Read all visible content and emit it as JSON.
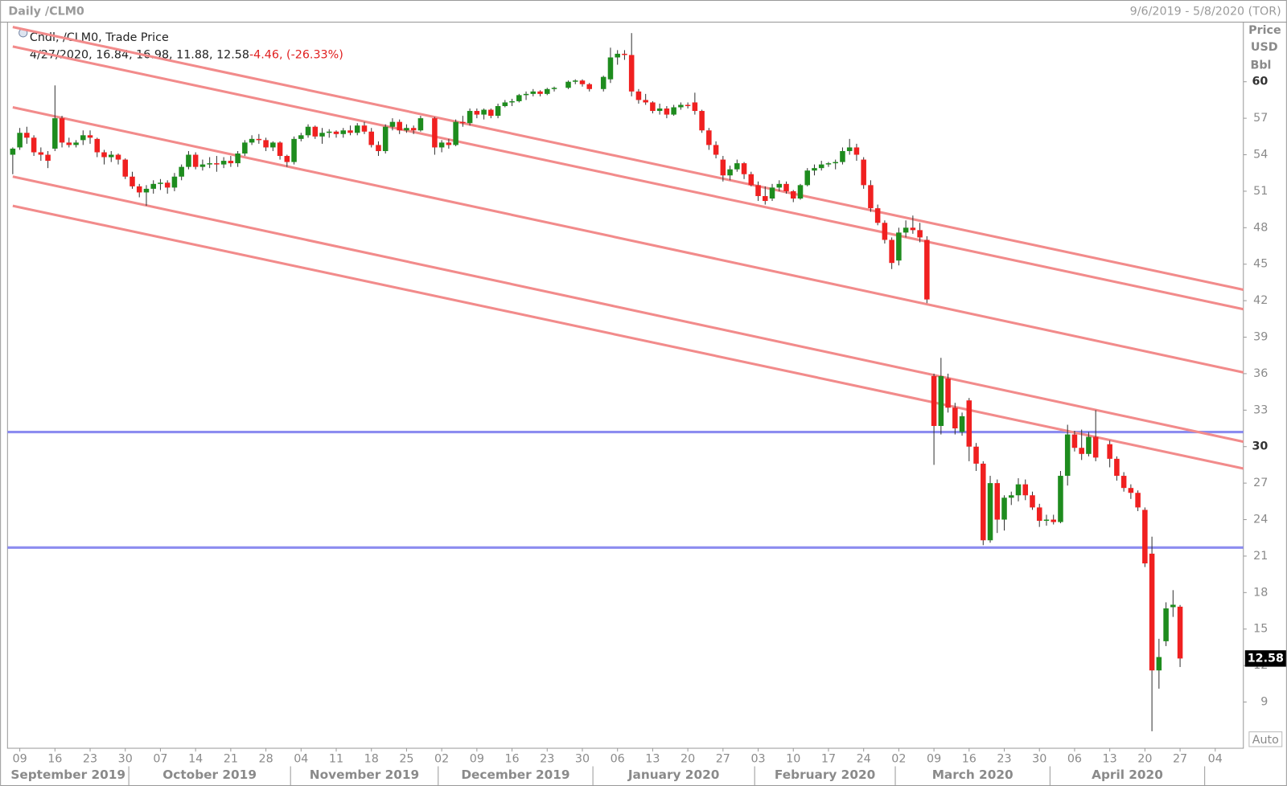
{
  "chart_data": {
    "type": "candlestick",
    "title": "Daily /CLM0",
    "date_range": "9/6/2019 - 5/8/2020 (TOR)",
    "axis_labels": [
      "Price",
      "USD",
      "Bbl"
    ],
    "legend": "Cndl, /CLM0, Trade Price",
    "legend_values": "4/27/2020, 16.84, 16.98, 11.88, 12.58",
    "legend_change": "-4.46, (-26.33%)",
    "scale_mode": "Auto",
    "up_color": "#1e8c1e",
    "down_color": "#f02020",
    "x": [
      "2019-09-06",
      "2019-09-09",
      "2019-09-10",
      "2019-09-11",
      "2019-09-12",
      "2019-09-13",
      "2019-09-16",
      "2019-09-17",
      "2019-09-18",
      "2019-09-19",
      "2019-09-20",
      "2019-09-23",
      "2019-09-24",
      "2019-09-25",
      "2019-09-26",
      "2019-09-27",
      "2019-09-30",
      "2019-10-01",
      "2019-10-02",
      "2019-10-03",
      "2019-10-04",
      "2019-10-07",
      "2019-10-08",
      "2019-10-09",
      "2019-10-10",
      "2019-10-11",
      "2019-10-14",
      "2019-10-15",
      "2019-10-16",
      "2019-10-17",
      "2019-10-18",
      "2019-10-21",
      "2019-10-22",
      "2019-10-23",
      "2019-10-24",
      "2019-10-25",
      "2019-10-28",
      "2019-10-29",
      "2019-10-30",
      "2019-10-31",
      "2019-11-01",
      "2019-11-04",
      "2019-11-05",
      "2019-11-06",
      "2019-11-07",
      "2019-11-08",
      "2019-11-11",
      "2019-11-12",
      "2019-11-13",
      "2019-11-14",
      "2019-11-15",
      "2019-11-18",
      "2019-11-19",
      "2019-11-20",
      "2019-11-21",
      "2019-11-22",
      "2019-11-25",
      "2019-11-26",
      "2019-11-27",
      "2019-11-29",
      "2019-12-02",
      "2019-12-03",
      "2019-12-04",
      "2019-12-05",
      "2019-12-06",
      "2019-12-09",
      "2019-12-10",
      "2019-12-11",
      "2019-12-12",
      "2019-12-13",
      "2019-12-16",
      "2019-12-17",
      "2019-12-18",
      "2019-12-19",
      "2019-12-20",
      "2019-12-23",
      "2019-12-24",
      "2019-12-26",
      "2019-12-27",
      "2019-12-30",
      "2019-12-31",
      "2020-01-02",
      "2020-01-03",
      "2020-01-06",
      "2020-01-07",
      "2020-01-08",
      "2020-01-09",
      "2020-01-10",
      "2020-01-13",
      "2020-01-14",
      "2020-01-15",
      "2020-01-16",
      "2020-01-17",
      "2020-01-20",
      "2020-01-21",
      "2020-01-22",
      "2020-01-23",
      "2020-01-24",
      "2020-01-27",
      "2020-01-28",
      "2020-01-29",
      "2020-01-30",
      "2020-01-31",
      "2020-02-03",
      "2020-02-04",
      "2020-02-05",
      "2020-02-06",
      "2020-02-07",
      "2020-02-10",
      "2020-02-11",
      "2020-02-12",
      "2020-02-13",
      "2020-02-14",
      "2020-02-17",
      "2020-02-18",
      "2020-02-19",
      "2020-02-20",
      "2020-02-21",
      "2020-02-24",
      "2020-02-25",
      "2020-02-26",
      "2020-02-27",
      "2020-02-28",
      "2020-03-02",
      "2020-03-03",
      "2020-03-04",
      "2020-03-05",
      "2020-03-06",
      "2020-03-09",
      "2020-03-10",
      "2020-03-11",
      "2020-03-12",
      "2020-03-13",
      "2020-03-16",
      "2020-03-17",
      "2020-03-18",
      "2020-03-19",
      "2020-03-20",
      "2020-03-23",
      "2020-03-24",
      "2020-03-25",
      "2020-03-26",
      "2020-03-27",
      "2020-03-30",
      "2020-03-31",
      "2020-04-01",
      "2020-04-02",
      "2020-04-03",
      "2020-04-06",
      "2020-04-07",
      "2020-04-08",
      "2020-04-09",
      "2020-04-13",
      "2020-04-14",
      "2020-04-15",
      "2020-04-16",
      "2020-04-17",
      "2020-04-20",
      "2020-04-21",
      "2020-04-22",
      "2020-04-23",
      "2020-04-24",
      "2020-04-27"
    ],
    "open": [
      54.0,
      54.6,
      55.8,
      55.4,
      54.2,
      54.0,
      54.5,
      57.0,
      55.0,
      54.8,
      55.2,
      55.6,
      55.3,
      54.2,
      53.8,
      54.0,
      53.6,
      52.2,
      51.4,
      50.9,
      51.2,
      51.6,
      51.7,
      51.3,
      52.2,
      53.0,
      54.0,
      53.0,
      53.2,
      53.3,
      53.2,
      53.5,
      53.3,
      54.1,
      55.0,
      55.3,
      55.2,
      54.6,
      55.0,
      53.9,
      53.4,
      55.3,
      55.6,
      56.3,
      55.5,
      55.8,
      55.9,
      55.7,
      56.0,
      55.8,
      56.4,
      55.9,
      54.8,
      54.3,
      56.3,
      56.7,
      56.0,
      56.2,
      56.0,
      57.0,
      54.6,
      55.0,
      54.8,
      56.7,
      56.6,
      57.6,
      57.3,
      57.7,
      57.2,
      58.0,
      58.3,
      58.4,
      58.9,
      59.0,
      59.2,
      59.0,
      59.4,
      59.5,
      60.0,
      60.1,
      59.8,
      59.4,
      60.2,
      62.0,
      62.3,
      62.2,
      59.2,
      58.5,
      58.3,
      57.6,
      57.8,
      57.3,
      57.9,
      58.1,
      58.3,
      57.6,
      56.0,
      54.8,
      53.6,
      52.3,
      52.8,
      53.3,
      52.4,
      51.5,
      50.6,
      50.4,
      51.3,
      51.6,
      51.0,
      50.4,
      51.5,
      52.7,
      52.9,
      53.2,
      53.3,
      53.4,
      54.3,
      54.6,
      53.6,
      51.5,
      49.6,
      48.4,
      47.0,
      45.3,
      47.6,
      48.0,
      47.8,
      47.0,
      35.8,
      31.7,
      35.6,
      33.2,
      31.2,
      33.8,
      30.0,
      28.6,
      22.3,
      27.0,
      24.0,
      25.8,
      26.0,
      26.9,
      26.0,
      25.0,
      23.9,
      24.0,
      23.8,
      27.6,
      31.0,
      29.9,
      29.4,
      30.8,
      30.2,
      29.0,
      27.6,
      26.6,
      26.2,
      24.8,
      21.2,
      11.6,
      14.0,
      16.8,
      16.84
    ],
    "high": [
      54.6,
      56.2,
      56.3,
      55.6,
      54.6,
      54.3,
      59.7,
      57.2,
      55.4,
      55.2,
      56.0,
      56.0,
      55.4,
      54.4,
      54.3,
      54.1,
      53.7,
      52.6,
      51.6,
      51.5,
      51.9,
      52.0,
      51.9,
      52.5,
      53.2,
      54.3,
      54.2,
      53.6,
      53.8,
      53.9,
      53.8,
      53.9,
      54.3,
      55.2,
      55.6,
      55.7,
      55.4,
      55.1,
      55.1,
      54.0,
      55.5,
      55.8,
      56.5,
      56.4,
      56.2,
      56.1,
      56.0,
      56.2,
      56.4,
      56.6,
      56.7,
      56.2,
      55.1,
      56.5,
      57.0,
      56.9,
      56.5,
      56.4,
      57.2,
      57.1,
      55.2,
      55.3,
      56.9,
      57.2,
      57.8,
      57.8,
      57.8,
      57.8,
      58.2,
      58.5,
      58.6,
      59.0,
      59.2,
      59.4,
      59.3,
      59.5,
      59.6,
      60.1,
      60.2,
      60.2,
      59.9,
      60.5,
      62.8,
      62.6,
      62.6,
      64.0,
      59.4,
      59.0,
      58.4,
      58.2,
      58.0,
      58.1,
      58.3,
      58.3,
      59.1,
      57.7,
      56.2,
      55.1,
      53.9,
      53.1,
      53.6,
      53.4,
      52.6,
      51.8,
      51.4,
      51.6,
      51.9,
      51.8,
      51.1,
      51.6,
      52.9,
      53.2,
      53.5,
      53.4,
      53.6,
      54.6,
      55.3,
      54.9,
      53.8,
      51.9,
      49.9,
      48.6,
      47.2,
      48.0,
      48.6,
      49.0,
      48.4,
      47.3,
      36.0,
      37.3,
      36.0,
      33.6,
      32.8,
      34.0,
      30.3,
      28.8,
      27.6,
      27.3,
      26.0,
      26.3,
      27.4,
      27.3,
      26.3,
      25.3,
      24.4,
      24.4,
      28.0,
      31.8,
      31.3,
      31.4,
      31.2,
      33.0,
      30.5,
      29.2,
      27.9,
      26.9,
      26.4,
      25.0,
      22.6,
      14.2,
      17.2,
      18.2,
      16.98
    ],
    "low": [
      52.4,
      54.4,
      54.9,
      53.9,
      53.5,
      52.9,
      54.3,
      54.6,
      54.6,
      54.6,
      54.8,
      54.9,
      53.8,
      53.2,
      53.4,
      53.2,
      52.0,
      51.2,
      50.5,
      49.8,
      50.8,
      51.1,
      50.8,
      51.0,
      51.9,
      52.8,
      52.8,
      52.7,
      52.9,
      52.6,
      52.9,
      53.0,
      53.0,
      53.9,
      54.8,
      54.9,
      54.3,
      54.3,
      53.6,
      53.0,
      53.2,
      55.1,
      55.4,
      55.3,
      54.9,
      55.4,
      55.4,
      55.4,
      55.6,
      55.6,
      55.7,
      54.6,
      53.9,
      54.1,
      56.0,
      55.7,
      55.8,
      55.7,
      55.9,
      54.0,
      54.2,
      54.5,
      54.7,
      56.3,
      56.4,
      57.0,
      56.9,
      57.0,
      57.0,
      57.9,
      58.0,
      58.3,
      58.5,
      58.8,
      58.8,
      58.9,
      59.2,
      59.4,
      59.8,
      59.6,
      59.2,
      59.2,
      59.9,
      61.4,
      61.8,
      58.8,
      58.2,
      58.1,
      57.4,
      57.3,
      57.0,
      57.2,
      57.7,
      57.8,
      57.3,
      55.8,
      54.4,
      53.7,
      51.8,
      51.9,
      52.6,
      52.0,
      51.4,
      50.2,
      49.9,
      50.2,
      51.0,
      50.8,
      50.1,
      50.3,
      51.4,
      52.3,
      52.7,
      53.0,
      52.8,
      53.2,
      54.0,
      53.5,
      51.2,
      49.3,
      48.2,
      46.7,
      44.6,
      44.9,
      47.2,
      47.5,
      46.8,
      41.8,
      28.5,
      31.0,
      32.8,
      31.0,
      30.9,
      28.8,
      28.0,
      21.9,
      22.1,
      22.9,
      23.1,
      25.2,
      25.5,
      25.6,
      24.8,
      23.4,
      23.5,
      23.6,
      23.7,
      26.8,
      29.6,
      28.9,
      29.2,
      28.8,
      28.3,
      27.2,
      26.3,
      25.7,
      24.7,
      20.1,
      6.6,
      10.1,
      13.6,
      16.0,
      11.88
    ],
    "close": [
      54.5,
      55.8,
      55.4,
      54.2,
      54.0,
      53.5,
      57.0,
      55.0,
      54.8,
      55.0,
      55.6,
      55.4,
      54.2,
      53.8,
      54.0,
      53.6,
      52.2,
      51.4,
      50.9,
      51.2,
      51.6,
      51.7,
      51.3,
      52.2,
      53.0,
      54.0,
      53.0,
      53.2,
      53.3,
      53.2,
      53.5,
      53.3,
      54.1,
      55.0,
      55.3,
      55.2,
      54.6,
      55.0,
      53.9,
      53.4,
      55.3,
      55.6,
      56.3,
      55.5,
      55.8,
      55.9,
      55.7,
      56.0,
      55.8,
      56.4,
      55.9,
      54.8,
      54.3,
      56.3,
      56.7,
      56.0,
      56.2,
      56.0,
      57.0,
      54.6,
      55.0,
      54.8,
      56.7,
      56.6,
      57.6,
      57.3,
      57.7,
      57.2,
      58.0,
      58.3,
      58.4,
      58.9,
      59.0,
      59.2,
      59.0,
      59.4,
      59.5,
      60.0,
      60.1,
      59.8,
      59.4,
      60.4,
      62.0,
      62.3,
      62.2,
      59.2,
      58.5,
      58.3,
      57.6,
      57.8,
      57.3,
      57.9,
      58.1,
      58.0,
      57.6,
      56.0,
      54.8,
      54.0,
      52.3,
      52.8,
      53.3,
      52.4,
      51.5,
      50.6,
      50.2,
      51.3,
      51.6,
      51.0,
      50.4,
      51.5,
      52.7,
      52.9,
      53.2,
      53.3,
      53.4,
      54.3,
      54.6,
      54.0,
      51.5,
      49.6,
      48.4,
      47.0,
      45.1,
      47.6,
      48.0,
      47.8,
      47.2,
      42.1,
      31.7,
      35.8,
      33.2,
      31.5,
      32.5,
      30.0,
      28.6,
      22.3,
      27.0,
      24.0,
      25.8,
      26.0,
      26.9,
      26.0,
      25.0,
      23.9,
      24.0,
      23.8,
      27.6,
      31.0,
      29.9,
      29.4,
      30.8,
      29.1,
      29.0,
      27.6,
      26.6,
      26.2,
      25.0,
      20.4,
      11.6,
      12.7,
      16.7,
      17.0,
      12.58
    ],
    "xlim": [
      "2019-09-06",
      "2020-05-08"
    ],
    "xticks": [
      {
        "value": "2019-09-09",
        "label": "09"
      },
      {
        "value": "2019-09-16",
        "label": "16"
      },
      {
        "value": "2019-09-23",
        "label": "23"
      },
      {
        "value": "2019-09-30",
        "label": "30"
      },
      {
        "value": "2019-10-07",
        "label": "07"
      },
      {
        "value": "2019-10-14",
        "label": "14"
      },
      {
        "value": "2019-10-21",
        "label": "21"
      },
      {
        "value": "2019-10-28",
        "label": "28"
      },
      {
        "value": "2019-11-04",
        "label": "04"
      },
      {
        "value": "2019-11-11",
        "label": "11"
      },
      {
        "value": "2019-11-18",
        "label": "18"
      },
      {
        "value": "2019-11-25",
        "label": "25"
      },
      {
        "value": "2019-12-02",
        "label": "02"
      },
      {
        "value": "2019-12-09",
        "label": "09"
      },
      {
        "value": "2019-12-16",
        "label": "16"
      },
      {
        "value": "2019-12-23",
        "label": "23"
      },
      {
        "value": "2019-12-30",
        "label": "30"
      },
      {
        "value": "2020-01-06",
        "label": "06"
      },
      {
        "value": "2020-01-13",
        "label": "13"
      },
      {
        "value": "2020-01-20",
        "label": "20"
      },
      {
        "value": "2020-01-27",
        "label": "27"
      },
      {
        "value": "2020-02-03",
        "label": "03"
      },
      {
        "value": "2020-02-10",
        "label": "10"
      },
      {
        "value": "2020-02-17",
        "label": "17"
      },
      {
        "value": "2020-02-24",
        "label": "24"
      },
      {
        "value": "2020-03-02",
        "label": "02"
      },
      {
        "value": "2020-03-09",
        "label": "09"
      },
      {
        "value": "2020-03-16",
        "label": "16"
      },
      {
        "value": "2020-03-23",
        "label": "23"
      },
      {
        "value": "2020-03-30",
        "label": "30"
      },
      {
        "value": "2020-04-06",
        "label": "06"
      },
      {
        "value": "2020-04-13",
        "label": "13"
      },
      {
        "value": "2020-04-20",
        "label": "20"
      },
      {
        "value": "2020-04-27",
        "label": "27"
      },
      {
        "value": "2020-05-04",
        "label": "04"
      }
    ],
    "month_ticks": [
      {
        "value": "2019-09-01",
        "label": "September 2019"
      },
      {
        "value": "2019-10-01",
        "label": "October 2019"
      },
      {
        "value": "2019-11-01",
        "label": "November 2019"
      },
      {
        "value": "2019-12-01",
        "label": "December 2019"
      },
      {
        "value": "2020-01-01",
        "label": "January 2020"
      },
      {
        "value": "2020-02-01",
        "label": "February 2020"
      },
      {
        "value": "2020-03-01",
        "label": "March 2020"
      },
      {
        "value": "2020-04-01",
        "label": "April 2020"
      }
    ],
    "ylim": [
      5.2,
      64.9
    ],
    "yticks": [
      9,
      12,
      15,
      18,
      21,
      24,
      27,
      30,
      33,
      36,
      39,
      42,
      45,
      48,
      51,
      54,
      57,
      60
    ],
    "trendlines": [
      {
        "color": "#f28b8b",
        "x": [
          "2019-09-06",
          "2020-05-08"
        ],
        "values": [
          64.5,
          42.9
        ]
      },
      {
        "color": "#f28b8b",
        "x": [
          "2019-09-06",
          "2020-05-08"
        ],
        "values": [
          62.9,
          41.3
        ]
      },
      {
        "color": "#f28b8b",
        "x": [
          "2019-09-06",
          "2020-05-08"
        ],
        "values": [
          57.9,
          36.1
        ]
      },
      {
        "color": "#f28b8b",
        "x": [
          "2019-09-06",
          "2020-05-08"
        ],
        "values": [
          52.2,
          30.4
        ]
      },
      {
        "color": "#f28b8b",
        "x": [
          "2019-09-06",
          "2020-05-08"
        ],
        "values": [
          49.8,
          28.2
        ]
      }
    ],
    "hlines": [
      {
        "color": "#8c8cf0",
        "value": 31.2
      },
      {
        "color": "#8c8cf0",
        "value": 21.7
      }
    ]
  }
}
